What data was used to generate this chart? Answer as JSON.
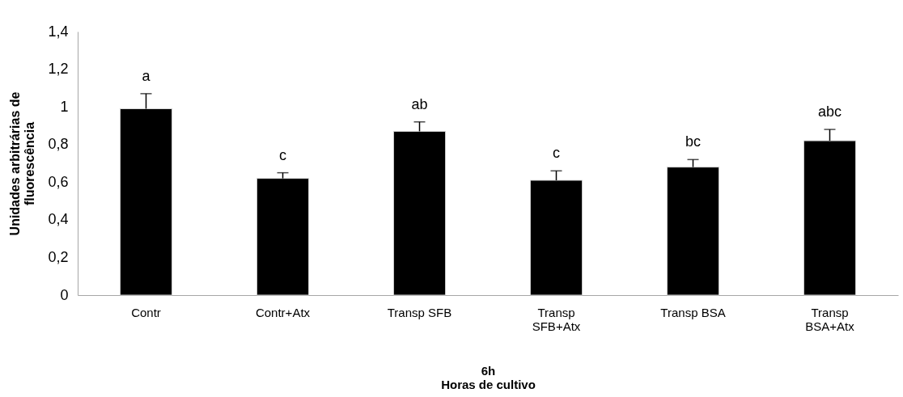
{
  "chart_data": {
    "type": "bar",
    "xlabel": "6h\nHoras de cultivo",
    "ylabel": "Unidades arbitrárias de\nfluorescência",
    "categories": [
      "Contr",
      "Contr+Atx",
      "Transp SFB",
      "Transp SFB+Atx",
      "Transp BSA",
      "Transp BSA+Atx"
    ],
    "values": [
      0.99,
      0.62,
      0.87,
      0.61,
      0.68,
      0.82
    ],
    "color": "#000000",
    "errors": [
      [
        0.99,
        1.07
      ],
      [
        0.62,
        0.65
      ],
      [
        0.87,
        0.92
      ],
      [
        0.61,
        0.66
      ],
      [
        0.68,
        0.72
      ],
      [
        0.82,
        0.88
      ]
    ],
    "annotations": [
      {
        "text": "a",
        "x": "Contr",
        "y": 1.07
      },
      {
        "text": "c",
        "x": "Contr+Atx",
        "y": 0.65
      },
      {
        "text": "ab",
        "x": "Transp SFB",
        "y": 0.92
      },
      {
        "text": "c",
        "x": "Transp SFB+Atx",
        "y": 0.66
      },
      {
        "text": "bc",
        "x": "Transp BSA",
        "y": 0.72
      },
      {
        "text": "abc",
        "x": "Transp BSA+Atx",
        "y": 0.88
      }
    ],
    "ylim": [
      0,
      1.4
    ],
    "yticks": [
      0,
      {
        "value": 0.2,
        "label": "0,2"
      },
      {
        "value": 0.4,
        "label": "0,4"
      },
      {
        "value": 0.6,
        "label": "0,6"
      },
      {
        "value": 0.8,
        "label": "0,8"
      },
      1,
      {
        "value": 1.2,
        "label": "1,2"
      },
      {
        "value": 1.4,
        "label": "1,4"
      }
    ],
    "grid": false
  }
}
